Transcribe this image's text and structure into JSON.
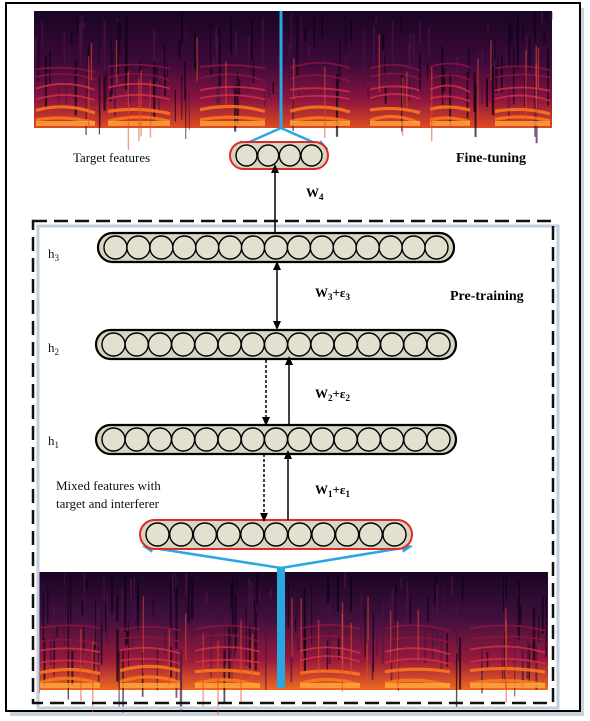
{
  "labels": {
    "target_features": "Target features",
    "fine_tuning": "Fine-tuning",
    "pre_training": "Pre-training",
    "mixed_line1": "Mixed features with",
    "mixed_line2": "target and interferer"
  },
  "layers": {
    "h3": "h",
    "h3_sub": "3",
    "h2": "h",
    "h2_sub": "2",
    "h1": "h",
    "h1_sub": "1"
  },
  "weights": {
    "w4": "W",
    "w4_sub": "4",
    "w3": "W",
    "w3_sub": "3",
    "w3_plus": "+ε",
    "w3_eps_sub": "3",
    "w2": "W",
    "w2_sub": "2",
    "w2_plus": "+ε",
    "w2_eps_sub": "2",
    "w1": "W",
    "w1_sub": "1",
    "w1_plus": "+ε",
    "w1_eps_sub": "1"
  },
  "colors": {
    "node_fill": "#e2e1cf",
    "bar_fill": "#d6d5c0",
    "io_border": "#e02a2a",
    "arrow_blue": "#29a8e0",
    "spectrogram_dark": "#1a0524",
    "spectrogram_mid": "#8a1440",
    "spectrogram_hot": "#ff7a1a"
  }
}
